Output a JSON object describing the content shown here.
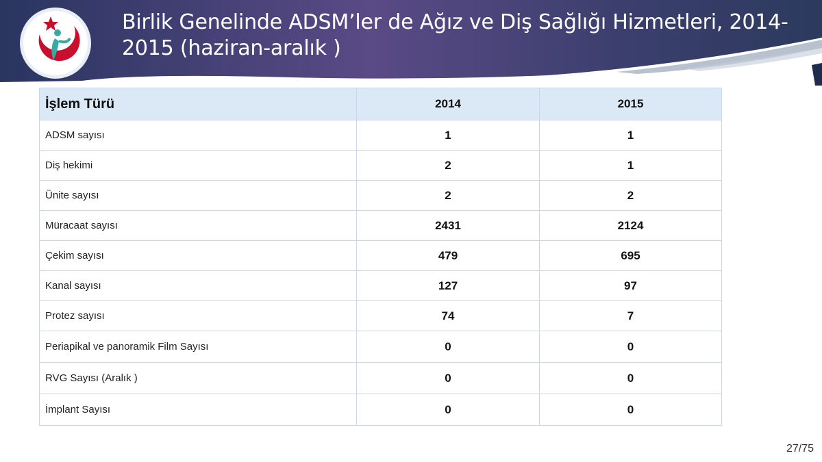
{
  "header": {
    "title_line1": "Birlik Genelinde ADSM’ler de Ağız ve Diş Sağlığı Hizmetleri, 2014-",
    "title_line2": "2015 (haziran-aralık )"
  },
  "colors": {
    "header_dark": "#2e3a63",
    "header_purple": "#5c4a86",
    "logo_red": "#c8102e",
    "logo_teal": "#3aa9a4",
    "table_header_bg": "#dbe9f6",
    "table_border": "#c6d8ea"
  },
  "table": {
    "columns": [
      "İşlem Türü",
      "2014",
      "2015"
    ],
    "rows": [
      {
        "label": "ADSM sayısı",
        "v2014": "1",
        "v2015": "1"
      },
      {
        "label": "Diş hekimi",
        "v2014": "2",
        "v2015": "1"
      },
      {
        "label": "Ünite sayısı",
        "v2014": "2",
        "v2015": "2"
      },
      {
        "label": "Müracaat sayısı",
        "v2014": "2431",
        "v2015": "2124"
      },
      {
        "label": "Çekim sayısı",
        "v2014": "479",
        "v2015": "695"
      },
      {
        "label": "Kanal sayısı",
        "v2014": "127",
        "v2015": "97"
      },
      {
        "label": "Protez sayısı",
        "v2014": "74",
        "v2015": "7"
      },
      {
        "label": "Periapikal ve panoramik Film Sayısı",
        "v2014": "0",
        "v2015": "0"
      },
      {
        "label": "RVG Sayısı (Aralık )",
        "v2014": "0",
        "v2015": "0"
      },
      {
        "label": "İmplant Sayısı",
        "v2014": "0",
        "v2015": "0"
      }
    ]
  },
  "footer": {
    "page_number": "27/75"
  }
}
